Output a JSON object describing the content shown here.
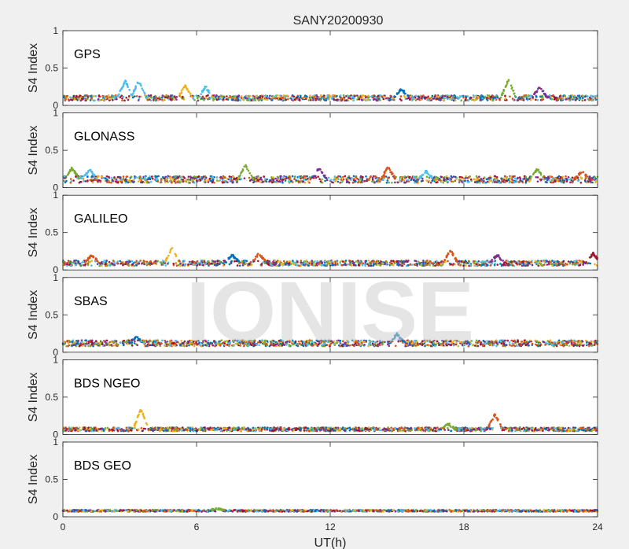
{
  "figure": {
    "title": "SANY20200930",
    "watermark": "IONISE",
    "background_color": "#f0f0f0",
    "axes_color": "#ffffff"
  },
  "chart_data": {
    "type": "scatter",
    "xlabel": "UT(h)",
    "xlim": [
      0,
      24
    ],
    "x_ticks": [
      0,
      6,
      12,
      18,
      24
    ],
    "x_tick_labels": [
      "0",
      "6",
      "12",
      "18",
      "24"
    ],
    "ylabel": "S4 Index",
    "ylim": [
      0,
      1
    ],
    "y_ticks": [
      0,
      0.5,
      1
    ],
    "y_tick_labels": [
      "0",
      "0.5",
      "1"
    ],
    "grid": false,
    "series_colors": [
      "#0072bd",
      "#d95319",
      "#edb120",
      "#7e2f8e",
      "#77ac30",
      "#4dbeee",
      "#a2142f"
    ],
    "panels": [
      {
        "label": "GPS",
        "baseline": 0.1,
        "noise": 0.035,
        "bumps": [
          {
            "x": 2.8,
            "y": 0.33,
            "color": "#4dbeee"
          },
          {
            "x": 3.4,
            "y": 0.33,
            "color": "#4dbeee"
          },
          {
            "x": 5.5,
            "y": 0.26,
            "color": "#edb120"
          },
          {
            "x": 6.4,
            "y": 0.25,
            "color": "#4dbeee"
          },
          {
            "x": 15.2,
            "y": 0.22,
            "color": "#0072bd"
          },
          {
            "x": 20.0,
            "y": 0.34,
            "color": "#77ac30"
          },
          {
            "x": 21.4,
            "y": 0.25,
            "color": "#7e2f8e"
          }
        ]
      },
      {
        "label": "GLONASS",
        "baseline": 0.11,
        "noise": 0.045,
        "bumps": [
          {
            "x": 0.4,
            "y": 0.26,
            "color": "#77ac30"
          },
          {
            "x": 1.2,
            "y": 0.24,
            "color": "#4dbeee"
          },
          {
            "x": 8.2,
            "y": 0.3,
            "color": "#77ac30"
          },
          {
            "x": 11.5,
            "y": 0.26,
            "color": "#7e2f8e"
          },
          {
            "x": 14.6,
            "y": 0.27,
            "color": "#d95319"
          },
          {
            "x": 16.3,
            "y": 0.22,
            "color": "#4dbeee"
          },
          {
            "x": 21.3,
            "y": 0.25,
            "color": "#77ac30"
          },
          {
            "x": 23.3,
            "y": 0.22,
            "color": "#d95319"
          }
        ]
      },
      {
        "label": "GALILEO",
        "baseline": 0.09,
        "noise": 0.035,
        "bumps": [
          {
            "x": 1.3,
            "y": 0.2,
            "color": "#d95319"
          },
          {
            "x": 4.9,
            "y": 0.29,
            "color": "#edb120"
          },
          {
            "x": 7.6,
            "y": 0.2,
            "color": "#0072bd"
          },
          {
            "x": 8.8,
            "y": 0.22,
            "color": "#d95319"
          },
          {
            "x": 17.4,
            "y": 0.26,
            "color": "#d95319"
          },
          {
            "x": 19.5,
            "y": 0.2,
            "color": "#7e2f8e"
          },
          {
            "x": 23.8,
            "y": 0.22,
            "color": "#a2142f"
          }
        ]
      },
      {
        "label": "SBAS",
        "baseline": 0.12,
        "noise": 0.04,
        "bumps": [
          {
            "x": 15.0,
            "y": 0.24,
            "color": "#0072bd"
          },
          {
            "x": 3.3,
            "y": 0.2,
            "color": "#0072bd"
          }
        ]
      },
      {
        "label": "BDS NGEO",
        "baseline": 0.07,
        "noise": 0.025,
        "bumps": [
          {
            "x": 3.5,
            "y": 0.34,
            "color": "#edb120"
          },
          {
            "x": 19.4,
            "y": 0.27,
            "color": "#d95319"
          },
          {
            "x": 17.3,
            "y": 0.14,
            "color": "#77ac30"
          }
        ]
      },
      {
        "label": "BDS GEO",
        "baseline": 0.08,
        "noise": 0.012,
        "bumps": [
          {
            "x": 6.9,
            "y": 0.11,
            "color": "#77ac30"
          }
        ]
      }
    ]
  }
}
